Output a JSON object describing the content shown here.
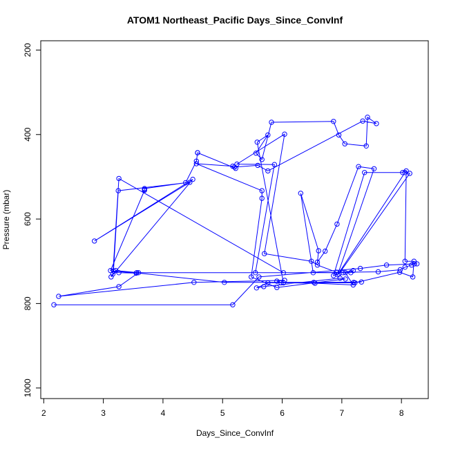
{
  "chart_data": {
    "type": "line",
    "title": "ATOM1 Northeast_Pacific Days_Since_ConvInf",
    "xlabel": "Days_Since_ConvInf",
    "ylabel": "Pressure (mbar)",
    "xlim": [
      1.95,
      8.45
    ],
    "ylim": [
      1025,
      178
    ],
    "y_axis_reversed": true,
    "x_ticks": [
      2,
      3,
      4,
      5,
      6,
      7,
      8
    ],
    "x_tick_labels": [
      "2",
      "3",
      "4",
      "5",
      "6",
      "7",
      "8"
    ],
    "y_ticks": [
      200,
      400,
      600,
      800,
      1000
    ],
    "y_tick_labels": [
      "200",
      "400",
      "600",
      "800",
      "1000"
    ],
    "grid": false,
    "legend": "none",
    "line_color": "#0000ff",
    "marker": "open-circle",
    "series": [
      {
        "x": [
          2.17,
          5.17,
          5.61,
          7.31,
          7.75,
          8.26,
          8.22,
          8.17,
          8.06,
          7.98,
          7.61,
          6.52,
          6.31,
          6.61,
          6.59,
          6.72,
          6.92,
          7.28,
          7.54,
          6.93,
          8.06,
          8.14,
          6.95,
          6.86,
          7.38,
          8.02,
          8.08,
          8.06,
          8.21,
          8.19,
          7.97,
          7.22,
          5.98,
          5.91,
          6.04,
          4.52,
          2.25,
          3.26,
          3.59,
          3.21,
          5.03,
          7.2,
          7.33,
          6.53,
          5.76,
          5.57,
          5.69,
          6.97,
          7.06,
          5.91,
          5.48,
          5.66,
          5.66,
          4.56,
          5.17,
          5.2,
          5.59,
          5.76,
          7.35,
          7.58,
          7.43,
          7.41,
          7.05,
          6.95,
          6.86,
          5.82,
          5.66,
          5.56,
          5.76,
          5.58,
          6.02,
          6.55,
          7.19,
          7.06,
          6.91,
          6.59,
          6.49,
          5.7,
          6.04,
          5.24,
          5.87,
          5.55,
          3.56,
          7.15,
          7.19,
          7.02,
          6.02,
          3.26,
          3.16,
          3.13,
          4.5,
          2.85,
          4.45,
          3.25,
          3.17,
          3.55,
          3.26,
          3.12,
          3.69,
          3.69,
          3.69,
          4.38,
          4.56,
          4.58,
          5.22,
          4.58
        ],
        "y": [
          803,
          803,
          737,
          717,
          709,
          706,
          706,
          709,
          714,
          720,
          725,
          727,
          539,
          675,
          702,
          676,
          612,
          476,
          481,
          732,
          490,
          492,
          730,
          734,
          490,
          490,
          486,
          700,
          700,
          737,
          726,
          751,
          751,
          747,
          745,
          750,
          783,
          760,
          727,
          722,
          750,
          750,
          749,
          750,
          751,
          763,
          760,
          740,
          742,
          762,
          737,
          551,
          533,
          469,
          475,
          477,
          473,
          486,
          368,
          374,
          359,
          427,
          422,
          401,
          369,
          371,
          459,
          444,
          401,
          418,
          751,
          752,
          756,
          727,
          726,
          709,
          700,
          682,
          399,
          470,
          471,
          727,
          727,
          727,
          722,
          727,
          727,
          504,
          730,
          737,
          506,
          652,
          513,
          533,
          723,
          728,
          727,
          722,
          532,
          530,
          528,
          514,
          463,
          443,
          480,
          443
        ]
      }
    ]
  }
}
